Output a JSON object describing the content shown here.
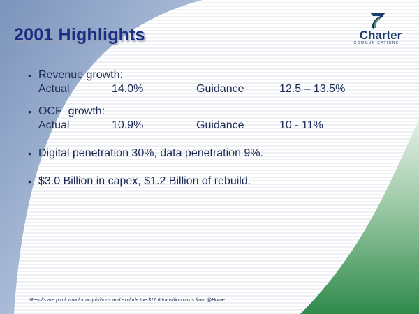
{
  "slide": {
    "title": "2001 Highlights",
    "logo": {
      "name": "Charter",
      "subtitle": "COMMUNICATIONS",
      "icon": "charter-swirl-logo-icon"
    },
    "bullets": [
      {
        "heading": "Revenue growth:",
        "row": {
          "label": "Actual",
          "actual": "14.0%",
          "guidance_label": "Guidance",
          "guidance": "12.5 – 13.5%"
        }
      },
      {
        "heading": "OCF  growth:",
        "row": {
          "label": "Actual",
          "actual": "10.9%",
          "guidance_label": "Guidance",
          "guidance": "10 - 11%"
        }
      },
      {
        "text": "Digital penetration 30%, data penetration 9%."
      },
      {
        "text": "$3.0 Billion in capex, $1.2 Billion of rebuild."
      }
    ],
    "bullet_glyph": "•",
    "footnote": "*Results are pro forma for acquisitions and exclude the $17.6 transition costs from @Home",
    "colors": {
      "title": "#1a2f84",
      "text": "#1c2a55",
      "swoosh_blue": "#8fa6c9",
      "swoosh_green": "#3f9a5a"
    }
  }
}
